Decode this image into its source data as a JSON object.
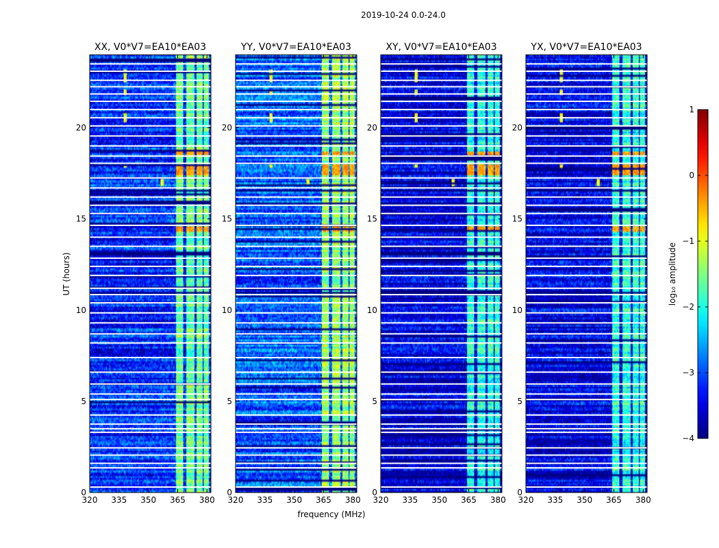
{
  "figure": {
    "suptitle": "2019-10-24 0.0-24.0",
    "colormap": "jet"
  },
  "chart_data": {
    "type": "heatmap",
    "title": "2019-10-24 0.0-24.0",
    "xlabel": "frequency (MHz)",
    "ylabel": "UT (hours)",
    "xlim": [
      320,
      382
    ],
    "ylim": [
      0,
      24
    ],
    "xticks": [
      320,
      335,
      350,
      365,
      380
    ],
    "yticks": [
      0,
      5,
      10,
      15,
      20
    ],
    "panels": [
      {
        "name": "XX",
        "title": "XX, V0*V7=EA10*EA03",
        "offset": 0.0
      },
      {
        "name": "YY",
        "title": "YY, V0*V7=EA10*EA03",
        "offset": 0.25
      },
      {
        "name": "XY",
        "title": "XY, V0*V7=EA10*EA03",
        "offset": -0.35
      },
      {
        "name": "YX",
        "title": "YX, V0*V7=EA10*EA03",
        "offset": -0.3
      }
    ],
    "colorbar": {
      "label": "log₁₀ amplitude",
      "ticks": [
        1,
        0,
        -1,
        -2,
        -3,
        -4
      ],
      "range": [
        -4,
        1
      ]
    },
    "features": {
      "background_level": -3.2,
      "bright_band_mhz": [
        [
          364,
          368
        ],
        [
          369.5,
          373.5
        ],
        [
          374.5,
          378
        ],
        [
          378.5,
          381
        ]
      ],
      "bright_band_level": -1.6,
      "spike_channel_mhz": 338,
      "spike_hours": [
        [
          20.3,
          20.8
        ],
        [
          21.8,
          22.1
        ],
        [
          22.5,
          23.2
        ],
        [
          17.8,
          18.0
        ]
      ],
      "spike_level": -0.9,
      "secondary_spike_mhz": 357,
      "secondary_spike_hours": [
        16.8,
        17.2
      ],
      "hot_rows_hours": [
        [
          14.3,
          14.6
        ],
        [
          17.4,
          18.0
        ],
        [
          18.5,
          18.7
        ]
      ],
      "hot_rows_level": -0.4,
      "flagged_rows_hours": [
        0.3,
        1.35,
        1.6,
        2.05,
        2.45,
        3.3,
        3.5,
        3.75,
        4.25,
        5.1,
        5.4,
        5.95,
        6.6,
        7.4,
        8.2,
        8.7,
        9.3,
        9.85,
        10.4,
        10.85,
        11.2,
        11.9,
        12.4,
        12.85,
        13.5,
        14.0,
        14.65,
        15.3,
        15.75,
        16.2,
        16.7,
        17.25,
        18.05,
        18.45,
        19.0,
        19.55,
        20.1,
        20.55,
        21.0,
        21.45,
        21.85,
        22.25,
        22.6,
        23.1,
        23.5
      ]
    }
  }
}
